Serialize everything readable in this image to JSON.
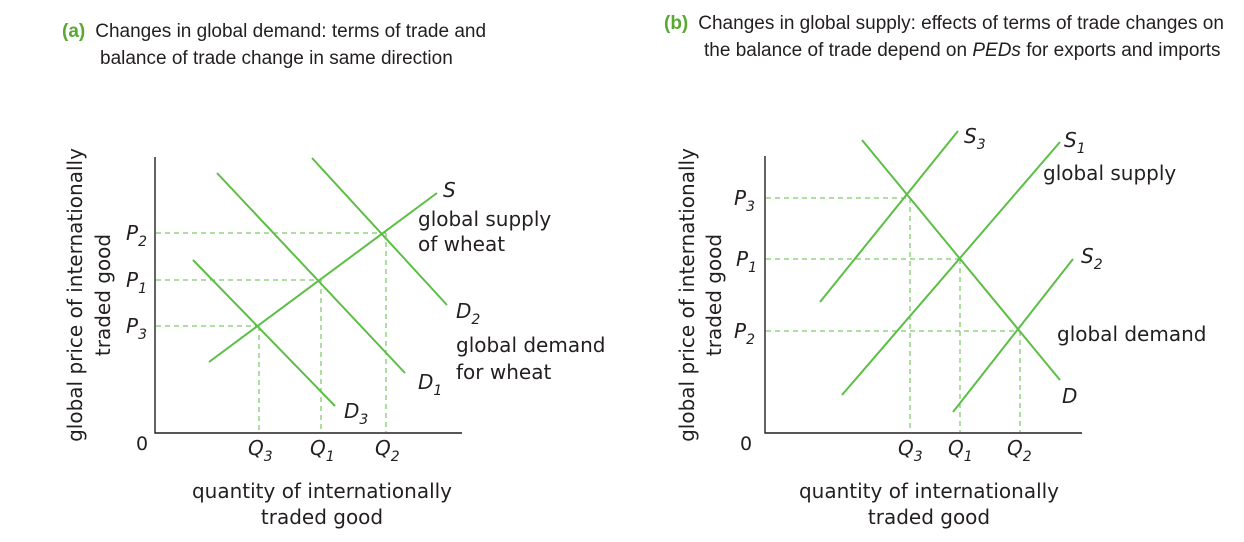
{
  "panel_a": {
    "tag": "(a)",
    "caption_line1": "Changes in global demand: terms of trade and",
    "caption_line2": "balance of trade change in same direction",
    "y_axis_line1": "global price of internationally",
    "y_axis_line2": "traded good",
    "x_axis_line1": "quantity of internationally",
    "x_axis_line2": "traded good",
    "origin": "0",
    "price_labels": [
      {
        "base": "P",
        "sub": "2"
      },
      {
        "base": "P",
        "sub": "1"
      },
      {
        "base": "P",
        "sub": "3"
      }
    ],
    "quantity_labels": [
      {
        "base": "Q",
        "sub": "3"
      },
      {
        "base": "Q",
        "sub": "1"
      },
      {
        "base": "Q",
        "sub": "2"
      }
    ],
    "supply": {
      "base": "S",
      "desc_line1": "global supply",
      "desc_line2": "of wheat"
    },
    "demand_d2": {
      "base": "D",
      "sub": "2"
    },
    "demand_d1": {
      "base": "D",
      "sub": "1"
    },
    "demand_d3": {
      "base": "D",
      "sub": "3"
    },
    "demand_desc_line1": "global demand",
    "demand_desc_line2": "for wheat"
  },
  "panel_b": {
    "tag": "(b)",
    "caption_line1": "Changes in global supply: effects of terms of trade changes on",
    "caption_line2_pre": "the balance of trade depend on ",
    "caption_line2_em": "PEDs",
    "caption_line2_post": " for exports and imports",
    "y_axis_line1": "global price of internationally",
    "y_axis_line2": "traded good",
    "x_axis_line1": "quantity of internationally",
    "x_axis_line2": "traded good",
    "origin": "0",
    "price_labels": [
      {
        "base": "P",
        "sub": "3"
      },
      {
        "base": "P",
        "sub": "1"
      },
      {
        "base": "P",
        "sub": "2"
      }
    ],
    "quantity_labels": [
      {
        "base": "Q",
        "sub": "3"
      },
      {
        "base": "Q",
        "sub": "1"
      },
      {
        "base": "Q",
        "sub": "2"
      }
    ],
    "supply_s3": {
      "base": "S",
      "sub": "3"
    },
    "supply_s1": {
      "base": "S",
      "sub": "1"
    },
    "supply_s2": {
      "base": "S",
      "sub": "2"
    },
    "supply_desc": "global supply",
    "demand": {
      "base": "D"
    },
    "demand_desc": "global demand"
  },
  "colors": {
    "curve": "#5cbf45",
    "tag": "#5aa832",
    "text": "#231f20"
  }
}
